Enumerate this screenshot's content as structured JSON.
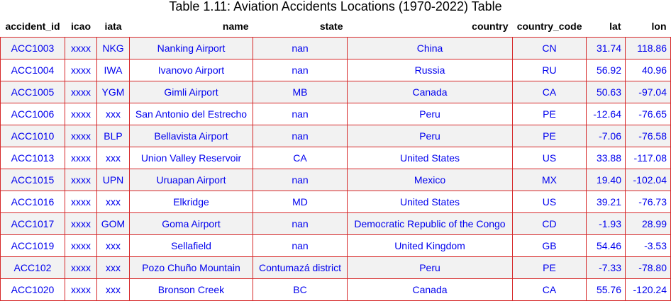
{
  "chart_data": {
    "type": "table",
    "title": "Table 1.11: Aviation Accidents Locations (1970-2022) Table",
    "columns": [
      "accident_id",
      "icao",
      "iata",
      "name",
      "state",
      "country",
      "country_code",
      "lat",
      "lon"
    ],
    "rows": [
      [
        "ACC1003",
        "xxxx",
        "NKG",
        "Nanking Airport",
        "nan",
        "China",
        "CN",
        "31.74",
        "118.86"
      ],
      [
        "ACC1004",
        "xxxx",
        "IWA",
        "Ivanovo Airport",
        "nan",
        "Russia",
        "RU",
        "56.92",
        "40.96"
      ],
      [
        "ACC1005",
        "xxxx",
        "YGM",
        "Gimli Airport",
        "MB",
        "Canada",
        "CA",
        "50.63",
        "-97.04"
      ],
      [
        "ACC1006",
        "xxxx",
        "xxx",
        "San Antonio del Estrecho",
        "nan",
        "Peru",
        "PE",
        "-12.64",
        "-76.65"
      ],
      [
        "ACC1010",
        "xxxx",
        "BLP",
        "Bellavista Airport",
        "nan",
        "Peru",
        "PE",
        "-7.06",
        "-76.58"
      ],
      [
        "ACC1013",
        "xxxx",
        "xxx",
        "Union Valley Reservoir",
        "CA",
        "United States",
        "US",
        "33.88",
        "-117.08"
      ],
      [
        "ACC1015",
        "xxxx",
        "UPN",
        "Uruapan Airport",
        "nan",
        "Mexico",
        "MX",
        "19.40",
        "-102.04"
      ],
      [
        "ACC1016",
        "xxxx",
        "xxx",
        "Elkridge",
        "MD",
        "United States",
        "US",
        "39.21",
        "-76.73"
      ],
      [
        "ACC1017",
        "xxxx",
        "GOM",
        "Goma Airport",
        "nan",
        "Democratic Republic of the Congo",
        "CD",
        "-1.93",
        "28.99"
      ],
      [
        "ACC1019",
        "xxxx",
        "xxx",
        "Sellafield",
        "nan",
        "United Kingdom",
        "GB",
        "54.46",
        "-3.53"
      ],
      [
        "ACC102",
        "xxxx",
        "xxx",
        "Pozo Chuño Mountain",
        "Contumazá district",
        "Peru",
        "PE",
        "-7.33",
        "-78.80"
      ],
      [
        "ACC1020",
        "xxxx",
        "xxx",
        "Bronson Creek",
        "BC",
        "Canada",
        "CA",
        "55.76",
        "-120.24"
      ]
    ]
  },
  "colors": {
    "cell_text": "#0000ee",
    "grid_border": "#d62728",
    "striped_row": "#f2f2f2",
    "header_text": "#000000"
  }
}
